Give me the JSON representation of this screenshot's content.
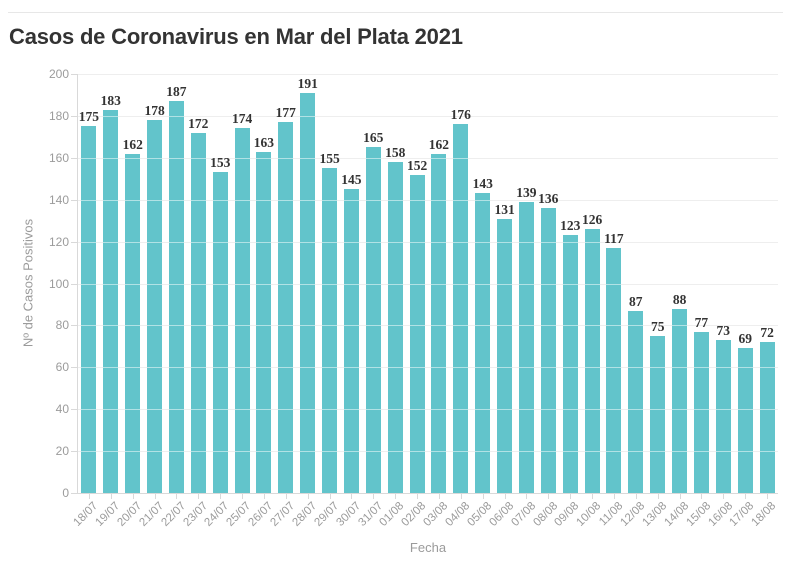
{
  "chart_data": {
    "type": "bar",
    "title": "Casos de Coronavirus en Mar del Plata 2021",
    "xlabel": "Fecha",
    "ylabel": "Nº de Casos Positivos",
    "categories": [
      "18/07",
      "19/07",
      "20/07",
      "21/07",
      "22/07",
      "23/07",
      "24/07",
      "25/07",
      "26/07",
      "27/07",
      "28/07",
      "29/07",
      "30/07",
      "31/07",
      "01/08",
      "02/08",
      "03/08",
      "04/08",
      "05/08",
      "06/08",
      "07/08",
      "08/08",
      "09/08",
      "10/08",
      "11/08",
      "12/08",
      "13/08",
      "14/08",
      "15/08",
      "16/08",
      "17/08",
      "18/08"
    ],
    "values": [
      175,
      183,
      162,
      178,
      187,
      172,
      153,
      174,
      163,
      177,
      191,
      155,
      145,
      165,
      158,
      152,
      162,
      176,
      143,
      131,
      139,
      136,
      123,
      126,
      117,
      87,
      75,
      88,
      77,
      73,
      69,
      72
    ],
    "ylim": [
      0,
      200
    ],
    "ytick_step": 20,
    "grid": "horizontal",
    "legend": "none",
    "bar_color": "#62c4cb",
    "value_label_color": "#333333",
    "axis_text_color": "#9b9b9b"
  }
}
